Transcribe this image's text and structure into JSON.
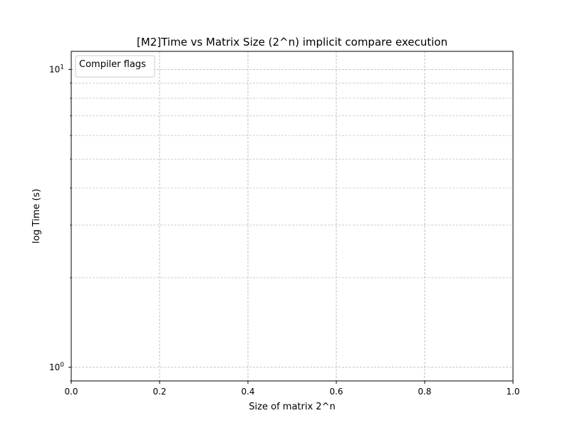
{
  "chart_data": {
    "type": "line",
    "title": "[M2]Time vs Matrix Size (2^n) implicit compare execution",
    "xlabel": "Size of matrix 2^n",
    "ylabel": "log Time (s)",
    "xlim": [
      0.0,
      1.0
    ],
    "ylim": [
      0.9,
      11.5
    ],
    "yscale": "log",
    "x_ticks": [
      0.0,
      0.2,
      0.4,
      0.6,
      0.8,
      1.0
    ],
    "x_tick_labels": [
      "0.0",
      "0.2",
      "0.4",
      "0.6",
      "0.8",
      "1.0"
    ],
    "y_major_ticks": [
      1,
      10
    ],
    "y_major_tick_labels": [
      {
        "base": "10",
        "exp": "0"
      },
      {
        "base": "10",
        "exp": "1"
      }
    ],
    "y_minor_ticks": [
      2,
      3,
      4,
      5,
      6,
      7,
      8,
      9
    ],
    "grid": true,
    "grid_style": "dashed",
    "legend_title": "Compiler flags",
    "legend_position": "upper-left",
    "series": []
  },
  "colors": {
    "axis": "#000000",
    "grid": "#b0b0b0",
    "legend_border": "#cccccc",
    "background": "#ffffff"
  }
}
